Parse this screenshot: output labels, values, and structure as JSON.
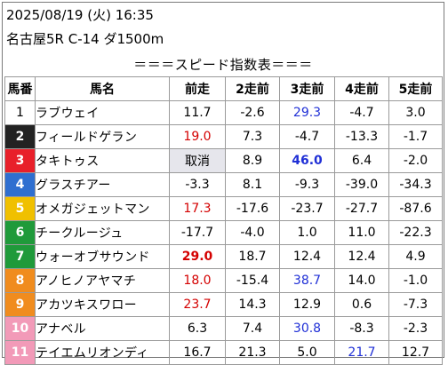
{
  "header": {
    "date_line": "2025/08/19 (火) 16:35",
    "race_line": "名古屋5R C-14 ダ1500m",
    "table_title": "＝＝＝スピード指数表＝＝＝"
  },
  "columns": [
    "馬番",
    "馬名",
    "前走",
    "2走前",
    "3走前",
    "4走前",
    "5走前"
  ],
  "colors": {
    "gate_1": "#ffffff",
    "gate_2": "#222222",
    "gate_3": "#e8202a",
    "gate_4": "#2f6fd0",
    "gate_5": "#f0c000",
    "gate_6": "#1f9a3a",
    "gate_7": "#f08c1e",
    "gate_8": "#f29ab8",
    "value_blue": "#1f2fd6",
    "value_red": "#d40000",
    "scratch_bg": "#e6e6ec"
  },
  "rows": [
    {
      "num": "1",
      "gate_color": "#ffffff",
      "num_color": "#000000",
      "name": "ラブウェイ",
      "vals": [
        "11.7",
        "-2.6",
        "29.3",
        "-4.7",
        "3.0"
      ],
      "styles": [
        "",
        "",
        "blue",
        "",
        ""
      ]
    },
    {
      "num": "2",
      "gate_color": "#222222",
      "num_color": "#ffffff",
      "name": "フィールドゲラン",
      "vals": [
        "19.0",
        "7.3",
        "-4.7",
        "-13.3",
        "-1.7"
      ],
      "styles": [
        "red",
        "",
        "",
        "",
        ""
      ]
    },
    {
      "num": "3",
      "gate_color": "#e8202a",
      "num_color": "#ffffff",
      "name": "タキトゥス",
      "vals": [
        "取消",
        "8.9",
        "46.0",
        "6.4",
        "-2.0"
      ],
      "styles": [
        "scratch",
        "",
        "blue bold",
        "",
        ""
      ]
    },
    {
      "num": "4",
      "gate_color": "#2f6fd0",
      "num_color": "#ffffff",
      "name": "グラスチアー",
      "vals": [
        "-3.3",
        "8.1",
        "-9.3",
        "-39.0",
        "-34.3"
      ],
      "styles": [
        "",
        "",
        "",
        "",
        ""
      ]
    },
    {
      "num": "5",
      "gate_color": "#f0c000",
      "num_color": "#ffffff",
      "name": "オメガジェットマン",
      "vals": [
        "17.3",
        "-17.6",
        "-23.7",
        "-27.7",
        "-87.6"
      ],
      "styles": [
        "red",
        "",
        "",
        "",
        ""
      ]
    },
    {
      "num": "6",
      "gate_color": "#1f9a3a",
      "num_color": "#ffffff",
      "name": "チークルージュ",
      "vals": [
        "-17.7",
        "-4.0",
        "1.0",
        "11.0",
        "-22.3"
      ],
      "styles": [
        "",
        "",
        "",
        "",
        ""
      ]
    },
    {
      "num": "7",
      "gate_color": "#1f9a3a",
      "num_color": "#ffffff",
      "name": "ウォーオブサウンド",
      "vals": [
        "29.0",
        "18.7",
        "12.4",
        "12.4",
        "4.9"
      ],
      "styles": [
        "red bold",
        "",
        "",
        "",
        ""
      ]
    },
    {
      "num": "8",
      "gate_color": "#f08c1e",
      "num_color": "#ffffff",
      "name": "アノヒノアヤマチ",
      "vals": [
        "18.0",
        "-15.4",
        "38.7",
        "14.0",
        "-1.0"
      ],
      "styles": [
        "red",
        "",
        "blue",
        "",
        ""
      ]
    },
    {
      "num": "9",
      "gate_color": "#f08c1e",
      "num_color": "#ffffff",
      "name": "アカツキスワロー",
      "vals": [
        "23.7",
        "14.3",
        "12.9",
        "0.6",
        "-7.3"
      ],
      "styles": [
        "red",
        "",
        "",
        "",
        ""
      ]
    },
    {
      "num": "10",
      "gate_color": "#f29ab8",
      "num_color": "#ffffff",
      "name": "アナベル",
      "vals": [
        "6.3",
        "7.4",
        "30.8",
        "-8.3",
        "-2.3"
      ],
      "styles": [
        "",
        "",
        "blue",
        "",
        ""
      ]
    },
    {
      "num": "11",
      "gate_color": "#f29ab8",
      "num_color": "#ffffff",
      "name": "テイエムリオンディ",
      "vals": [
        "16.7",
        "21.3",
        "5.0",
        "21.7",
        "12.7"
      ],
      "styles": [
        "",
        "",
        "",
        "blue",
        ""
      ]
    }
  ]
}
